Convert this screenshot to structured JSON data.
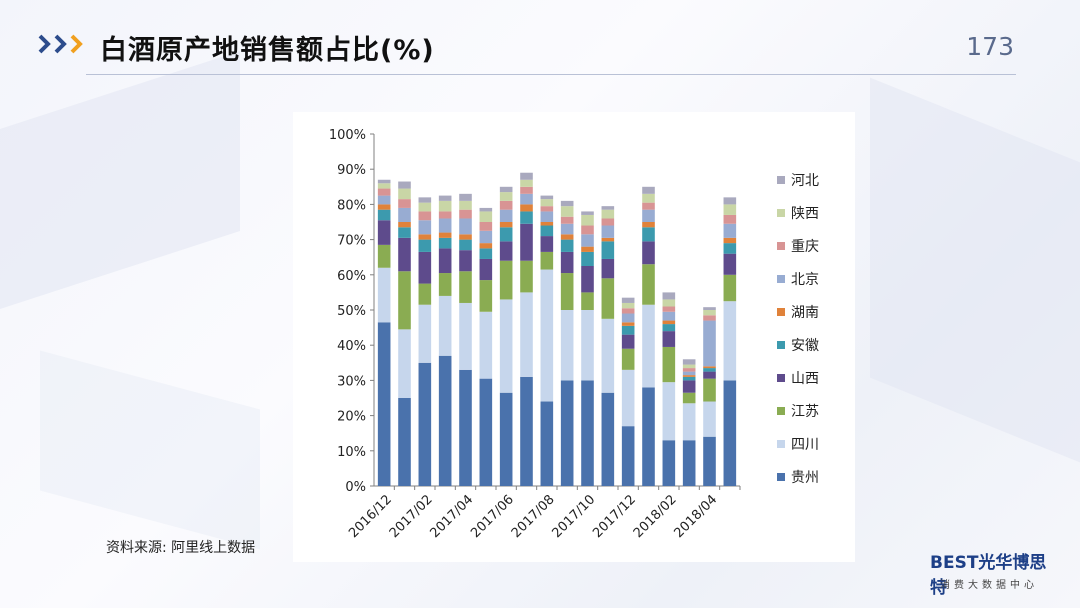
{
  "header": {
    "title": "白酒原产地销售额占比(%)",
    "page_number": "173"
  },
  "source": "资料来源: 阿里线上数据",
  "logo": {
    "mark": "BEST",
    "name": "光华博思特",
    "subtitle": "消费大数据中心"
  },
  "colors": {
    "chevron": "#2c4c8c",
    "chevron_accent": "#f0a020"
  },
  "chart_data": {
    "type": "bar",
    "stacked": true,
    "title": "",
    "xlabel": "",
    "ylabel": "",
    "ylim": [
      0,
      100
    ],
    "yticks": [
      "0%",
      "10%",
      "20%",
      "30%",
      "40%",
      "50%",
      "60%",
      "70%",
      "80%",
      "90%",
      "100%"
    ],
    "x_tick_labels": [
      "2016/12",
      "2017/02",
      "2017/04",
      "2017/06",
      "2017/08",
      "2017/10",
      "2017/12",
      "2018/02",
      "2018/04"
    ],
    "grid": false,
    "legend_position": "right",
    "categories": [
      "2016/12",
      "2017/01",
      "2017/02",
      "2017/03",
      "2017/04",
      "2017/05",
      "2017/06",
      "2017/07",
      "2017/08",
      "2017/09",
      "2017/10",
      "2017/11",
      "2017/12",
      "2018/01",
      "2018/02",
      "2018/03",
      "2018/04",
      "2018/05"
    ],
    "series": [
      {
        "name": "贵州",
        "color": "#4a72ac",
        "values": [
          46.5,
          25,
          35,
          37,
          33,
          30.5,
          26.5,
          31,
          24,
          30,
          30,
          26.5,
          17,
          28,
          13,
          13,
          14,
          30
        ]
      },
      {
        "name": "四川",
        "color": "#c6d6ec",
        "values": [
          15.5,
          19.5,
          16.5,
          17,
          19,
          19,
          26.5,
          24,
          37.5,
          20,
          20,
          21,
          16,
          23.5,
          16.5,
          10.5,
          10,
          22.5
        ]
      },
      {
        "name": "江苏",
        "color": "#8aac52",
        "values": [
          6.5,
          16.5,
          6,
          6.5,
          9,
          9,
          11,
          9,
          5,
          10.5,
          5,
          11.5,
          6,
          11.5,
          10,
          3,
          6.5,
          7.5
        ]
      },
      {
        "name": "山西",
        "color": "#5e4b8c",
        "values": [
          7,
          9.5,
          9,
          7,
          6,
          6,
          5.5,
          10.5,
          4.5,
          6,
          7.5,
          5.5,
          4,
          6.5,
          4.5,
          3.5,
          2,
          6
        ]
      },
      {
        "name": "安徽",
        "color": "#3c9aae",
        "values": [
          3,
          3,
          3.5,
          3,
          3,
          3,
          4,
          3.5,
          3,
          3.5,
          4,
          5,
          2.5,
          4,
          2,
          1,
          1,
          3
        ]
      },
      {
        "name": "湖南",
        "color": "#e0823a",
        "values": [
          1.5,
          1.5,
          1.5,
          1.5,
          1.5,
          1.5,
          1.5,
          2,
          1,
          1.5,
          1.5,
          1,
          1,
          1.5,
          1,
          0.5,
          0.5,
          1.5
        ]
      },
      {
        "name": "北京",
        "color": "#98acd2",
        "values": [
          2.5,
          4,
          4,
          4,
          4.5,
          3.5,
          3.5,
          3,
          3,
          3,
          3.5,
          3.5,
          2.5,
          3.5,
          2.5,
          1,
          13,
          4
        ]
      },
      {
        "name": "重庆",
        "color": "#d89494",
        "values": [
          2,
          2.5,
          2.5,
          2,
          2.5,
          2.5,
          2.5,
          2,
          1.5,
          2,
          2.5,
          2,
          1.5,
          2,
          1.5,
          1,
          1.5,
          2.5
        ]
      },
      {
        "name": "陕西",
        "color": "#c9d6a6",
        "values": [
          1.5,
          3,
          2.5,
          3,
          2.5,
          3,
          2.5,
          2,
          2,
          3,
          3,
          2.5,
          1.5,
          2.5,
          2,
          1,
          1.5,
          3
        ]
      },
      {
        "name": "河北",
        "color": "#a9a9be",
        "values": [
          1,
          2,
          1.5,
          1.5,
          2,
          1,
          1.5,
          2,
          1,
          1.5,
          1,
          1,
          1.5,
          2,
          2,
          1.5,
          0.8,
          2
        ]
      }
    ]
  }
}
